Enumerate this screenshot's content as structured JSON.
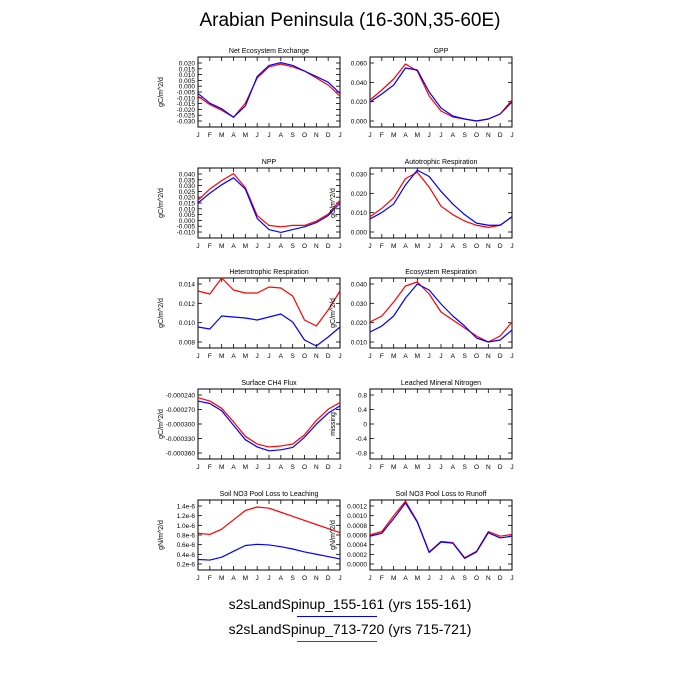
{
  "title": "Arabian Peninsula (16-30N,35-60E)",
  "legend": [
    {
      "label": "s2sLandSpinup_155-161 (yrs 155-161)",
      "color": "#0000ff"
    },
    {
      "label": "s2sLandSpinup_713-720 (yrs 715-721)",
      "color": "#ff0000"
    }
  ],
  "chart_data": [
    {
      "type": "line",
      "title": "Net Ecosystem Exchange",
      "ylabel": "gC/m^2/d",
      "categories": [
        "J",
        "F",
        "M",
        "A",
        "M",
        "J",
        "J",
        "A",
        "S",
        "O",
        "N",
        "D",
        "J"
      ],
      "ylim": [
        -0.03,
        0.02
      ],
      "yticks": [
        "0.020",
        "0.015",
        "0.010",
        "0.005",
        "0.000",
        "-0.005",
        "-0.010",
        "-0.015",
        "-0.020",
        "-0.025",
        "-0.030"
      ],
      "series": [
        {
          "name": "s2sLandSpinup_155-161",
          "color": "#0000ff",
          "values": [
            -0.006,
            -0.013,
            -0.017,
            -0.023,
            -0.015,
            0.006,
            0.014,
            0.016,
            0.014,
            0.01,
            0.006,
            0.002,
            -0.006
          ]
        },
        {
          "name": "s2sLandSpinup_713-720",
          "color": "#ff0000",
          "values": [
            -0.008,
            -0.014,
            -0.018,
            -0.023,
            -0.013,
            0.005,
            0.013,
            0.015,
            0.013,
            0.01,
            0.005,
            0.0,
            -0.008
          ]
        }
      ]
    },
    {
      "type": "line",
      "title": "GPP",
      "ylabel": "",
      "categories": [
        "J",
        "F",
        "M",
        "A",
        "M",
        "J",
        "J",
        "A",
        "S",
        "O",
        "N",
        "D",
        "J"
      ],
      "ylim": [
        0,
        0.07
      ],
      "yticks": [
        "0.060",
        "0.040",
        "0.020",
        "0.000"
      ],
      "series": [
        {
          "name": "s2sLandSpinup_155-161",
          "color": "#0000ff",
          "values": [
            0.025,
            0.033,
            0.042,
            0.059,
            0.057,
            0.035,
            0.019,
            0.011,
            0.008,
            0.006,
            0.008,
            0.013,
            0.025
          ]
        },
        {
          "name": "s2sLandSpinup_713-720",
          "color": "#ff0000",
          "values": [
            0.027,
            0.037,
            0.048,
            0.063,
            0.056,
            0.031,
            0.016,
            0.01,
            0.008,
            0.006,
            0.008,
            0.013,
            0.027
          ]
        }
      ]
    },
    {
      "type": "line",
      "title": "NPP",
      "ylabel": "gC/m^2/d",
      "categories": [
        "J",
        "F",
        "M",
        "A",
        "M",
        "J",
        "J",
        "A",
        "S",
        "O",
        "N",
        "D",
        "J"
      ],
      "ylim": [
        -0.01,
        0.04
      ],
      "yticks": [
        "0.040",
        "0.035",
        "0.030",
        "0.025",
        "0.020",
        "0.015",
        "0.010",
        "0.005",
        "0.000",
        "-0.005",
        "-0.010"
      ],
      "series": [
        {
          "name": "s2sLandSpinup_155-161",
          "color": "#0000ff",
          "values": [
            0.015,
            0.022,
            0.028,
            0.033,
            0.025,
            0.004,
            -0.004,
            -0.006,
            -0.004,
            -0.002,
            0.001,
            0.006,
            0.015
          ]
        },
        {
          "name": "s2sLandSpinup_713-720",
          "color": "#ff0000",
          "values": [
            0.017,
            0.025,
            0.031,
            0.036,
            0.026,
            0.006,
            -0.001,
            -0.002,
            -0.001,
            -0.001,
            0.002,
            0.007,
            0.017
          ]
        }
      ]
    },
    {
      "type": "line",
      "title": "Autotrophic Respiration",
      "ylabel": "gC/m^2/d",
      "categories": [
        "J",
        "F",
        "M",
        "A",
        "M",
        "J",
        "J",
        "A",
        "S",
        "O",
        "N",
        "D",
        "J"
      ],
      "ylim": [
        0,
        0.033
      ],
      "yticks": [
        "0.030",
        "0.020",
        "0.010",
        "0.000"
      ],
      "series": [
        {
          "name": "s2sLandSpinup_155-161",
          "color": "#0000ff",
          "values": [
            0.009,
            0.012,
            0.016,
            0.025,
            0.032,
            0.029,
            0.022,
            0.016,
            0.011,
            0.007,
            0.006,
            0.006,
            0.01
          ]
        },
        {
          "name": "s2sLandSpinup_713-720",
          "color": "#ff0000",
          "values": [
            0.01,
            0.014,
            0.019,
            0.028,
            0.031,
            0.024,
            0.015,
            0.011,
            0.008,
            0.006,
            0.005,
            0.006,
            0.01
          ]
        }
      ]
    },
    {
      "type": "line",
      "title": "Heterotrophic Respiration",
      "ylabel": "gC/m^2/d",
      "categories": [
        "J",
        "F",
        "M",
        "A",
        "M",
        "J",
        "J",
        "A",
        "S",
        "O",
        "N",
        "D",
        "J"
      ],
      "ylim": [
        0.007,
        0.014
      ],
      "yticks": [
        "0.014",
        "0.012",
        "0.010",
        "0.008"
      ],
      "series": [
        {
          "name": "s2sLandSpinup_155-161",
          "color": "#0000ff",
          "values": [
            0.0091,
            0.0089,
            0.0102,
            0.0101,
            0.01,
            0.0098,
            0.0101,
            0.0104,
            0.0096,
            0.0078,
            0.0072,
            0.0081,
            0.0091
          ]
        },
        {
          "name": "s2sLandSpinup_713-720",
          "color": "#ff0000",
          "values": [
            0.0127,
            0.0124,
            0.014,
            0.0128,
            0.0125,
            0.0125,
            0.0131,
            0.013,
            0.0122,
            0.0098,
            0.0092,
            0.0108,
            0.0127
          ]
        }
      ]
    },
    {
      "type": "line",
      "title": "Ecosystem Respiration",
      "ylabel": "gC/m^2/d",
      "categories": [
        "J",
        "F",
        "M",
        "A",
        "M",
        "J",
        "J",
        "A",
        "S",
        "O",
        "N",
        "D",
        "J"
      ],
      "ylim": [
        0.01,
        0.045
      ],
      "yticks": [
        "0.040",
        "0.030",
        "0.020",
        "0.010"
      ],
      "series": [
        {
          "name": "s2sLandSpinup_155-161",
          "color": "#0000ff",
          "values": [
            0.018,
            0.021,
            0.026,
            0.035,
            0.042,
            0.039,
            0.032,
            0.026,
            0.021,
            0.015,
            0.013,
            0.014,
            0.019
          ]
        },
        {
          "name": "s2sLandSpinup_713-720",
          "color": "#ff0000",
          "values": [
            0.023,
            0.026,
            0.033,
            0.041,
            0.043,
            0.037,
            0.028,
            0.024,
            0.02,
            0.016,
            0.013,
            0.016,
            0.023
          ]
        }
      ]
    },
    {
      "type": "line",
      "title": "Surface CH4 Flux",
      "ylabel": "gC/m^2/d",
      "categories": [
        "J",
        "F",
        "M",
        "A",
        "M",
        "J",
        "J",
        "A",
        "S",
        "O",
        "N",
        "D",
        "J"
      ],
      "ylim": [
        -0.000385,
        -0.00024
      ],
      "yticks": [
        "-0.000240",
        "-0.000270",
        "-0.000300",
        "-0.000330",
        "-0.000360"
      ],
      "series": [
        {
          "name": "s2sLandSpinup_155-161",
          "color": "#0000ff",
          "values": [
            -0.000265,
            -0.00027,
            -0.000285,
            -0.000315,
            -0.000345,
            -0.00036,
            -0.000368,
            -0.000366,
            -0.000361,
            -0.00034,
            -0.000313,
            -0.00029,
            -0.000275
          ]
        },
        {
          "name": "s2sLandSpinup_713-720",
          "color": "#ff0000",
          "values": [
            -0.000258,
            -0.000265,
            -0.00028,
            -0.000308,
            -0.000338,
            -0.000354,
            -0.00036,
            -0.000358,
            -0.000354,
            -0.000335,
            -0.000305,
            -0.000282,
            -0.000268
          ]
        }
      ]
    },
    {
      "type": "line",
      "title": "Leached Mineral Nitrogen",
      "ylabel": "missing",
      "categories": [
        "J",
        "F",
        "M",
        "A",
        "M",
        "J",
        "J",
        "A",
        "S",
        "O",
        "N",
        "D",
        "J"
      ],
      "ylim": [
        -1,
        1
      ],
      "yticks": [
        "0.8",
        "0.4",
        "0",
        "-0.4",
        "-0.8"
      ],
      "series": []
    },
    {
      "type": "line",
      "title": "Soil NO3 Pool Loss to Leaching",
      "ylabel": "gN/m^2/d",
      "categories": [
        "J",
        "F",
        "M",
        "A",
        "M",
        "J",
        "J",
        "A",
        "S",
        "O",
        "N",
        "D",
        "J"
      ],
      "ylim": [
        2e-07,
        1.4e-06
      ],
      "yticks": [
        "1.4e-6",
        "1.2e-6",
        "1.0e-6",
        "0.8e-6",
        "0.6e-6",
        "0.4e-6",
        "0.2e-6"
      ],
      "series": [
        {
          "name": "s2sLandSpinup_155-161",
          "color": "#0000ff",
          "values": [
            3.8e-07,
            3.7e-07,
            4.2e-07,
            5.2e-07,
            6.2e-07,
            6.4e-07,
            6.3e-07,
            6e-07,
            5.6e-07,
            5.1e-07,
            4.7e-07,
            4.3e-07,
            3.9e-07
          ]
        },
        {
          "name": "s2sLandSpinup_713-720",
          "color": "#ff0000",
          "values": [
            8.3e-07,
            8.1e-07,
            9e-07,
            1.06e-06,
            1.22e-06,
            1.28e-06,
            1.26e-06,
            1.19e-06,
            1.12e-06,
            1.05e-06,
            9.8e-07,
            9.1e-07,
            8.4e-07
          ]
        }
      ]
    },
    {
      "type": "line",
      "title": "Soil NO3 Pool Loss to Runoff",
      "ylabel": "gN/m^2/d",
      "categories": [
        "J",
        "F",
        "M",
        "A",
        "M",
        "J",
        "J",
        "A",
        "S",
        "O",
        "N",
        "D",
        "J"
      ],
      "ylim": [
        0,
        0.0012
      ],
      "yticks": [
        "0.0012",
        "0.0010",
        "0.0008",
        "0.0006",
        "0.0004",
        "0.0002",
        "0.0000"
      ],
      "series": [
        {
          "name": "s2sLandSpinup_155-161",
          "color": "#0000ff",
          "values": [
            0.00058,
            0.00063,
            0.00088,
            0.00115,
            0.00082,
            0.0003,
            0.00048,
            0.00046,
            0.0002,
            0.00031,
            0.00064,
            0.00055,
            0.00058
          ]
        },
        {
          "name": "s2sLandSpinup_713-720",
          "color": "#ff0000",
          "values": [
            0.0006,
            0.00066,
            0.00093,
            0.00118,
            0.00083,
            0.00031,
            0.00049,
            0.00047,
            0.00021,
            0.00032,
            0.00066,
            0.00058,
            0.00061
          ]
        }
      ]
    }
  ]
}
